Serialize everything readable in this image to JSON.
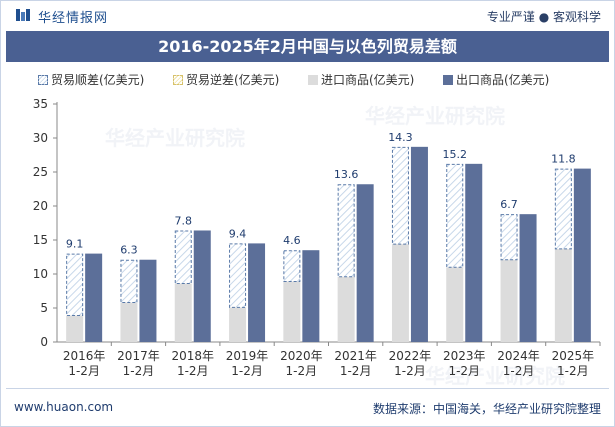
{
  "header": {
    "brand": "华经情报网",
    "slogan": "专业严谨 ● 客观科学"
  },
  "footer": {
    "website": "www.huaon.com",
    "source": "数据来源：中国海关，华经产业研究院整理"
  },
  "watermark": "华经产业研究院",
  "colors": {
    "title_bar": "#4a6092",
    "import": "#dcdcdc",
    "export": "#5c6f99",
    "surplus_hatch": "#c8d8ea",
    "surplus_border": "#5a7aa8",
    "label": "#1f3c6e"
  },
  "chart_data": {
    "type": "bar",
    "title": "2016-2025年2月中国与以色列贸易差额",
    "legend": [
      "贸易顺差(亿美元)",
      "贸易逆差(亿美元)",
      "进口商品(亿美元)",
      "出口商品(亿美元)"
    ],
    "legend_position": "top-left",
    "categories": [
      "2016年\n1-2月",
      "2017年\n1-2月",
      "2018年\n1-2月",
      "2019年\n1-2月",
      "2020年\n1-2月",
      "2021年\n1-2月",
      "2022年\n1-2月",
      "2023年\n1-2月",
      "2024年\n1-2月",
      "2025年\n1-2月"
    ],
    "category_lines": [
      [
        "2016年",
        "1-2月"
      ],
      [
        "2017年",
        "1-2月"
      ],
      [
        "2018年",
        "1-2月"
      ],
      [
        "2019年",
        "1-2月"
      ],
      [
        "2020年",
        "1-2月"
      ],
      [
        "2021年",
        "1-2月"
      ],
      [
        "2022年",
        "1-2月"
      ],
      [
        "2023年",
        "1-2月"
      ],
      [
        "2024年",
        "1-2月"
      ],
      [
        "2025年",
        "1-2月"
      ]
    ],
    "series": [
      {
        "name": "贸易顺差(亿美元)",
        "values": [
          9.1,
          6.3,
          7.8,
          9.4,
          4.6,
          13.6,
          14.3,
          15.2,
          6.7,
          11.8
        ]
      },
      {
        "name": "贸易逆差(亿美元)",
        "values": [
          0,
          0,
          0,
          0,
          0,
          0,
          0,
          0,
          0,
          0
        ]
      },
      {
        "name": "进口商品(亿美元)",
        "values": [
          3.9,
          5.8,
          8.6,
          5.1,
          8.9,
          9.6,
          14.4,
          11.0,
          12.1,
          13.7
        ]
      },
      {
        "name": "出口商品(亿美元)",
        "values": [
          13.0,
          12.1,
          16.4,
          14.5,
          13.5,
          23.2,
          28.7,
          26.2,
          18.8,
          25.5
        ]
      }
    ],
    "data_labels": [
      "9.1",
      "6.3",
      "7.8",
      "9.4",
      "4.6",
      "13.6",
      "14.3",
      "15.2",
      "6.7",
      "11.8"
    ],
    "y_ticks": [
      "0",
      "5",
      "10",
      "15",
      "20",
      "25",
      "30",
      "35"
    ],
    "ylim": [
      0,
      35
    ],
    "grid": false
  }
}
